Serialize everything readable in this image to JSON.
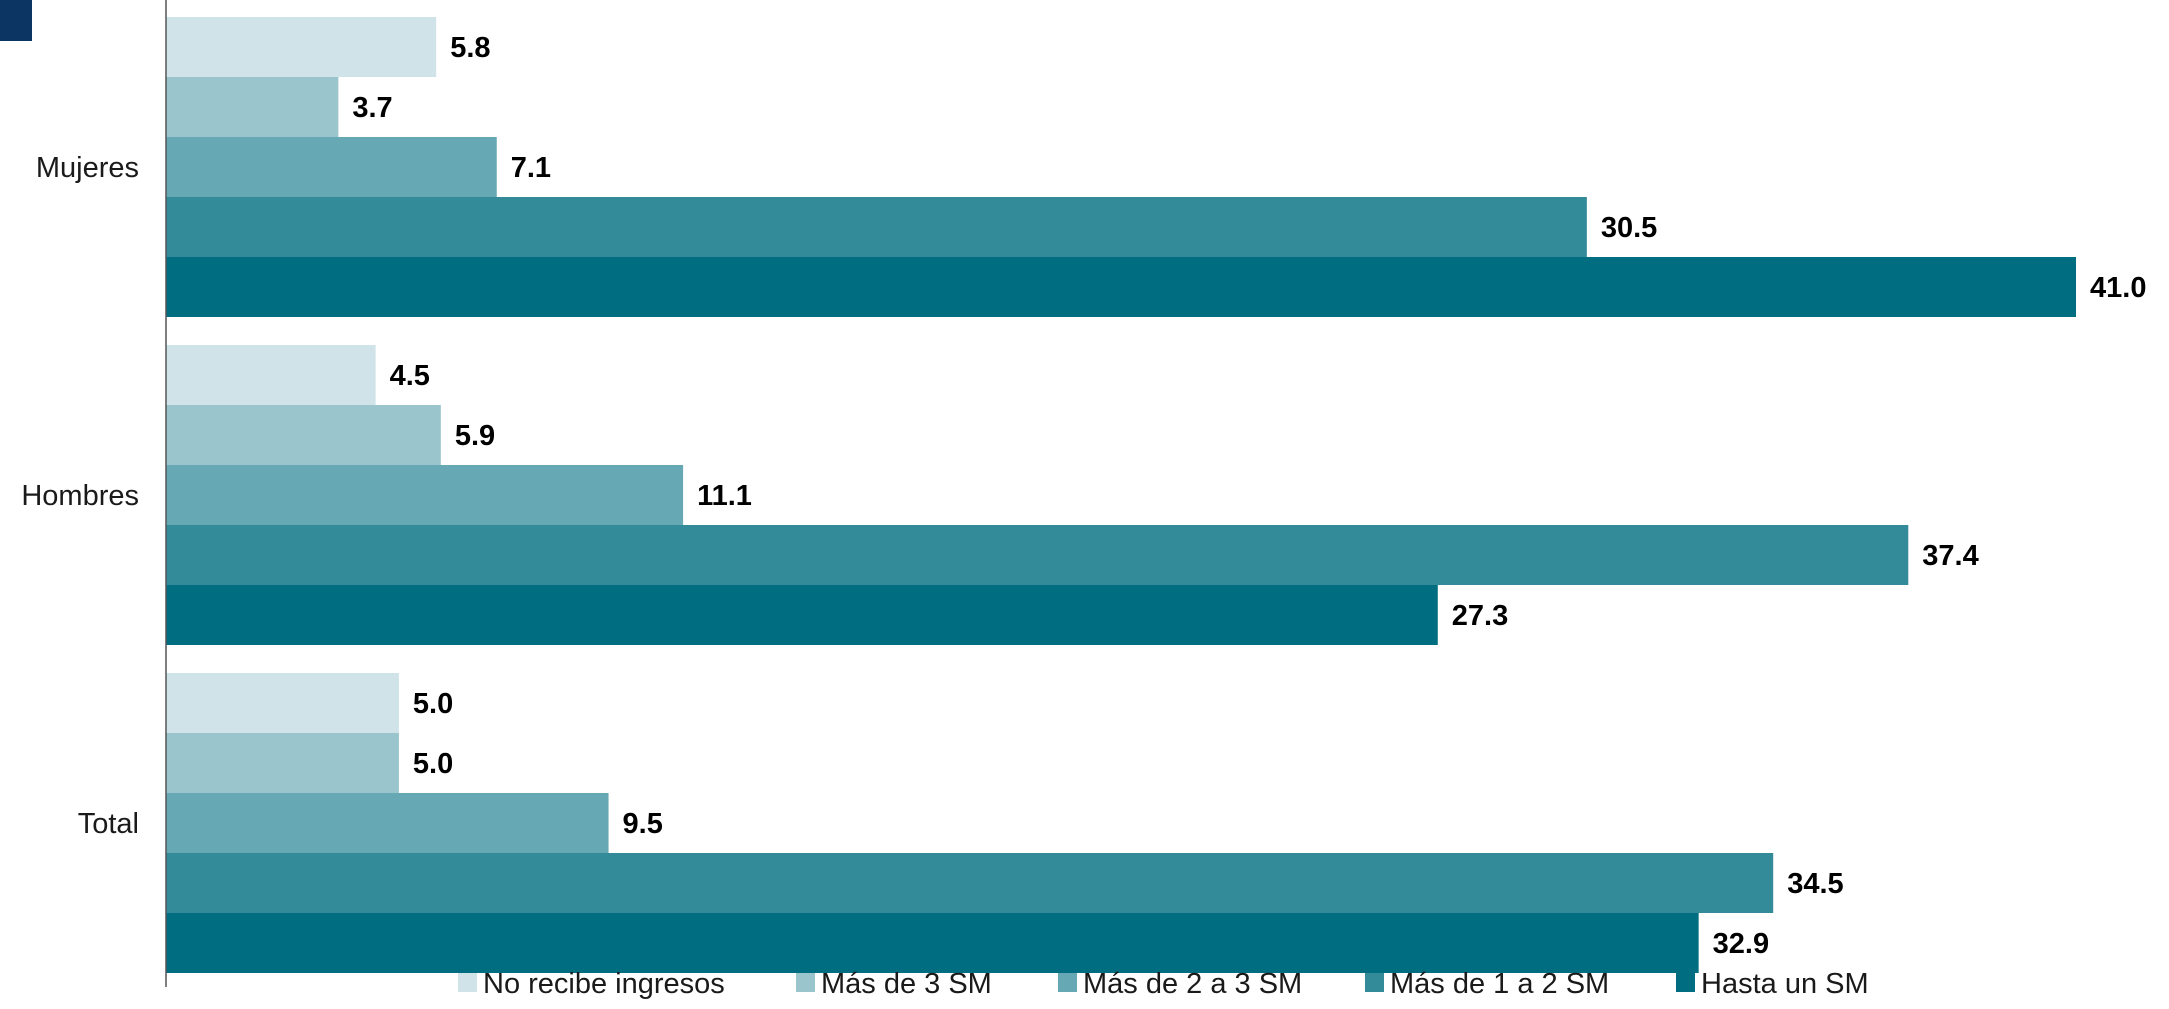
{
  "chart_data": {
    "type": "bar",
    "orientation": "horizontal",
    "categories": [
      "Mujeres",
      "Hombres",
      "Total"
    ],
    "series": [
      {
        "name": "No recibe ingresos",
        "color": "#cfe3e8",
        "values": [
          5.8,
          4.5,
          5.0
        ]
      },
      {
        "name": "Más de 3 SM",
        "color": "#9bc5cc",
        "values": [
          3.7,
          5.9,
          5.0
        ]
      },
      {
        "name": "Más de 2 a 3 SM",
        "color": "#66a8b3",
        "values": [
          7.1,
          11.1,
          9.5
        ]
      },
      {
        "name": "Más de 1 a 2 SM",
        "color": "#338a99",
        "values": [
          30.5,
          37.4,
          34.5
        ]
      },
      {
        "name": "Hasta un SM",
        "color": "#006e80",
        "values": [
          41.0,
          27.3,
          32.9
        ]
      }
    ],
    "xlim": [
      0,
      41.0
    ],
    "grid": false,
    "legend_position": "bottom",
    "data_labels": true,
    "value_format_decimals": 1,
    "title": "",
    "xlabel": "",
    "ylabel": ""
  },
  "corner_marker_color": "#0d3563"
}
